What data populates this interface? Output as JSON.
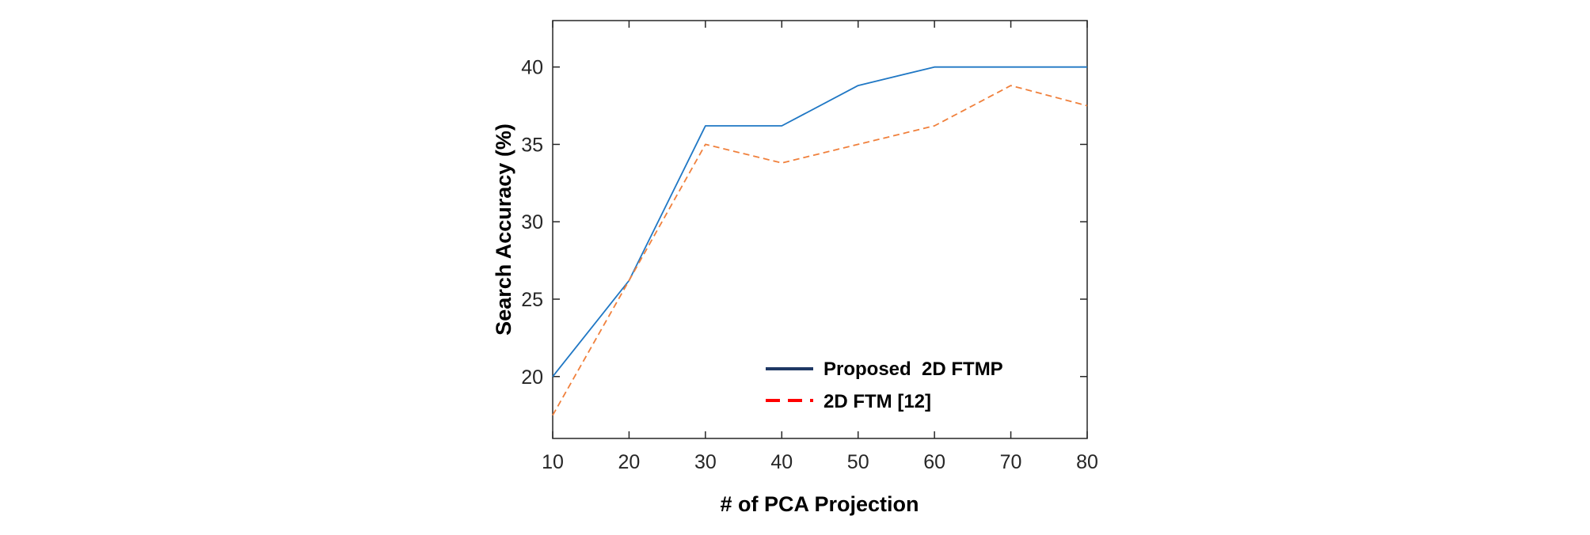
{
  "chart_data": {
    "type": "line",
    "title": "",
    "xlabel": "# of PCA Projection",
    "ylabel": "Search Accuracy (%)",
    "xlim": [
      10,
      80
    ],
    "ylim": [
      16,
      43
    ],
    "xticks": [
      "10",
      "20",
      "30",
      "40",
      "50",
      "60",
      "70",
      "80"
    ],
    "yticks": [
      "20",
      "25",
      "30",
      "35",
      "40"
    ],
    "grid": false,
    "legend_position": "bottom-right",
    "x": [
      10,
      20,
      30,
      40,
      50,
      60,
      70,
      80
    ],
    "series": [
      {
        "name": "Proposed  2D FTMP",
        "style": "solid",
        "color": "#1f77c4",
        "legend_color": "#1f3864",
        "values": [
          20.0,
          26.2,
          36.2,
          36.2,
          38.8,
          40.0,
          40.0,
          40.0
        ]
      },
      {
        "name": "2D FTM [12]",
        "style": "dashed",
        "color": "#f0803c",
        "legend_color": "#ff0000",
        "values": [
          17.5,
          26.2,
          35.0,
          33.8,
          35.0,
          36.2,
          38.8,
          37.5
        ]
      }
    ]
  }
}
